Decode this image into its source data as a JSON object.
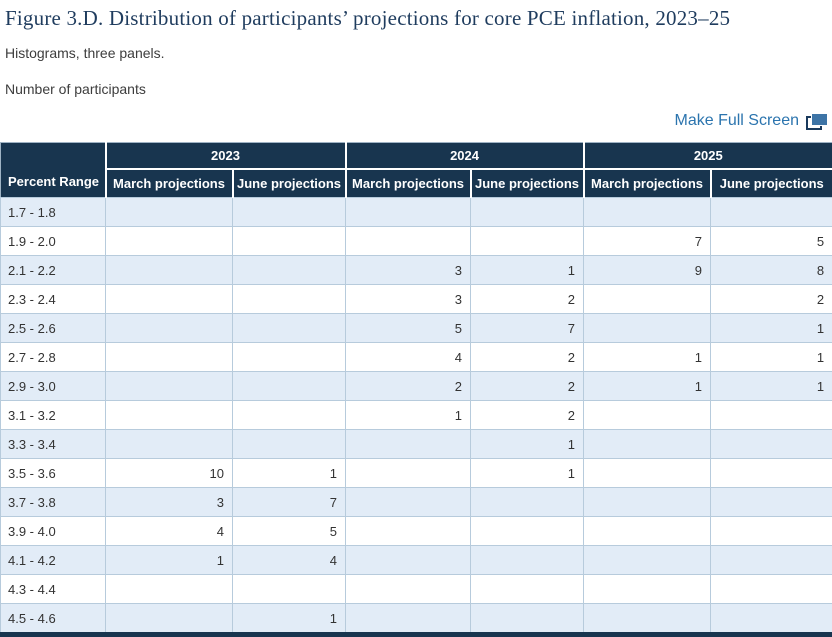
{
  "figure": {
    "title": "Figure 3.D. Distribution of participants’ projections for core PCE inflation, 2023–25",
    "subtitle": "Histograms, three panels.",
    "units_label": "Number of participants"
  },
  "controls": {
    "fullscreen_label": "Make Full Screen",
    "fullscreen_icon": "full-screen-expand-icon"
  },
  "chart_data": {
    "type": "table",
    "title": "Distribution of participants’ projections for core PCE inflation, 2023–25",
    "ylabel": "Number of participants",
    "corner_header": "Percent Range",
    "year_groups": [
      "2023",
      "2024",
      "2025"
    ],
    "subcolumns": [
      "March projections",
      "June projections"
    ],
    "columns": [
      "Percent Range",
      "2023 March projections",
      "2023 June projections",
      "2024 March projections",
      "2024 June projections",
      "2025 March projections",
      "2025 June projections"
    ],
    "rows": [
      {
        "range": "1.7 - 1.8",
        "values": [
          "",
          "",
          "",
          "",
          "",
          ""
        ]
      },
      {
        "range": "1.9 - 2.0",
        "values": [
          "",
          "",
          "",
          "",
          "7",
          "5"
        ]
      },
      {
        "range": "2.1 - 2.2",
        "values": [
          "",
          "",
          "3",
          "1",
          "9",
          "8"
        ]
      },
      {
        "range": "2.3 - 2.4",
        "values": [
          "",
          "",
          "3",
          "2",
          "",
          "2"
        ]
      },
      {
        "range": "2.5 - 2.6",
        "values": [
          "",
          "",
          "5",
          "7",
          "",
          "1"
        ]
      },
      {
        "range": "2.7 - 2.8",
        "values": [
          "",
          "",
          "4",
          "2",
          "1",
          "1"
        ]
      },
      {
        "range": "2.9 - 3.0",
        "values": [
          "",
          "",
          "2",
          "2",
          "1",
          "1"
        ]
      },
      {
        "range": "3.1 - 3.2",
        "values": [
          "",
          "",
          "1",
          "2",
          "",
          ""
        ]
      },
      {
        "range": "3.3 - 3.4",
        "values": [
          "",
          "",
          "",
          "1",
          "",
          ""
        ]
      },
      {
        "range": "3.5 - 3.6",
        "values": [
          "10",
          "1",
          "",
          "1",
          "",
          ""
        ]
      },
      {
        "range": "3.7 - 3.8",
        "values": [
          "3",
          "7",
          "",
          "",
          "",
          ""
        ]
      },
      {
        "range": "3.9 - 4.0",
        "values": [
          "4",
          "5",
          "",
          "",
          "",
          ""
        ]
      },
      {
        "range": "4.1 - 4.2",
        "values": [
          "1",
          "4",
          "",
          "",
          "",
          ""
        ]
      },
      {
        "range": "4.3 - 4.4",
        "values": [
          "",
          "",
          "",
          "",
          "",
          ""
        ]
      },
      {
        "range": "4.5 - 4.6",
        "values": [
          "",
          "1",
          "",
          "",
          "",
          ""
        ]
      }
    ]
  },
  "colors": {
    "header_bg": "#18354f",
    "title_text": "#1f3c5e",
    "link_blue": "#2b74ae",
    "icon_fill": "#3d74a6",
    "icon_outline": "#1a3a5c",
    "alt_row_bg": "#e2ecf7",
    "grid_line": "#b7cbdc",
    "outer_border": "#9fb3c4",
    "body_text": "#333333"
  }
}
